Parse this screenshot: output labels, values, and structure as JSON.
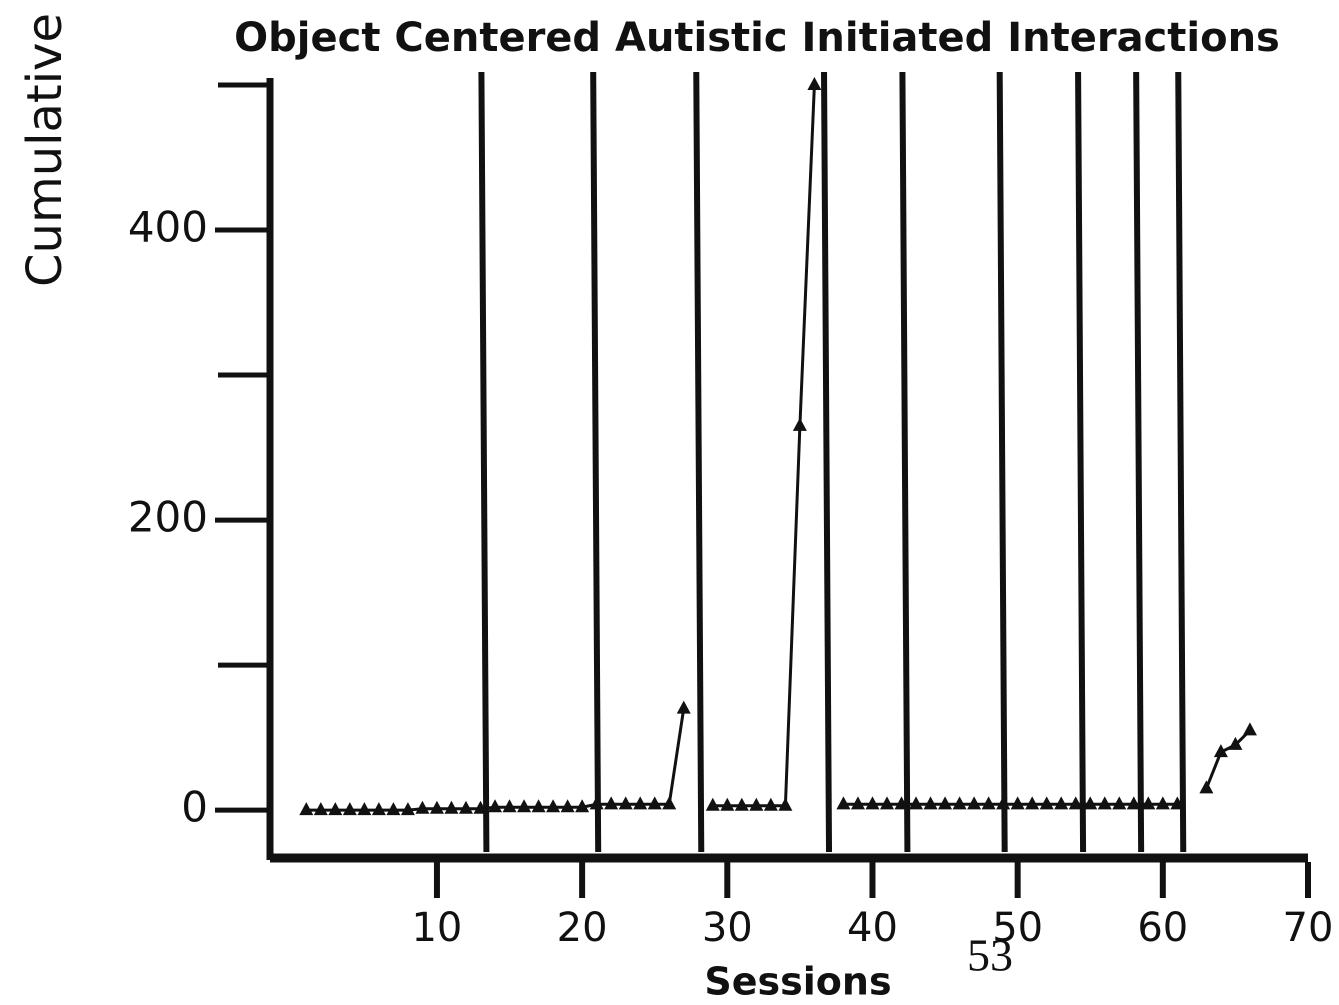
{
  "chart_data": {
    "type": "line",
    "title": "Object Centered Autistic Initiated Interactions",
    "y_label": "Cumulative",
    "x_label": "Sessions",
    "page_number": "53",
    "x": [
      1,
      2,
      3,
      4,
      5,
      6,
      7,
      8,
      9,
      10,
      11,
      12,
      13,
      14,
      15,
      16,
      17,
      18,
      19,
      20,
      21,
      22,
      23,
      24,
      25,
      26,
      27,
      28,
      29,
      30,
      31,
      32,
      33,
      34,
      35,
      36,
      37,
      38,
      39,
      40,
      41,
      42,
      43,
      44,
      45,
      46,
      47,
      48,
      49,
      50,
      51,
      52,
      53,
      54,
      55,
      56,
      57,
      58,
      59,
      60,
      61,
      62,
      63,
      64,
      65,
      66
    ],
    "series": [
      {
        "color": "#111111",
        "values": [
          0,
          0,
          0,
          0,
          0,
          0,
          0,
          0,
          1,
          1,
          1,
          1,
          1,
          2,
          2,
          2,
          2,
          2,
          2,
          2,
          4,
          4,
          4,
          4,
          4,
          4,
          70,
          null,
          3,
          3,
          3,
          3,
          3,
          3,
          265,
          500,
          null,
          4,
          4,
          4,
          4,
          4,
          4,
          4,
          4,
          4,
          4,
          4,
          4,
          4,
          4,
          4,
          4,
          4,
          4,
          4,
          4,
          4,
          4,
          4,
          4,
          null,
          15,
          40,
          45,
          55
        ]
      }
    ],
    "phase_lines": [
      13.2,
      20.9,
      28,
      36.8,
      42.2,
      48.9,
      54.3,
      58.3,
      61.2
    ],
    "xlim": [
      -1.5,
      70
    ],
    "ylim": [
      -33,
      500
    ],
    "xticks": [
      10,
      20,
      30,
      40,
      50,
      60,
      70
    ],
    "yticks": [
      0,
      200,
      400
    ],
    "yticks_minor": [
      100,
      300,
      500
    ],
    "marker": "triangle"
  }
}
